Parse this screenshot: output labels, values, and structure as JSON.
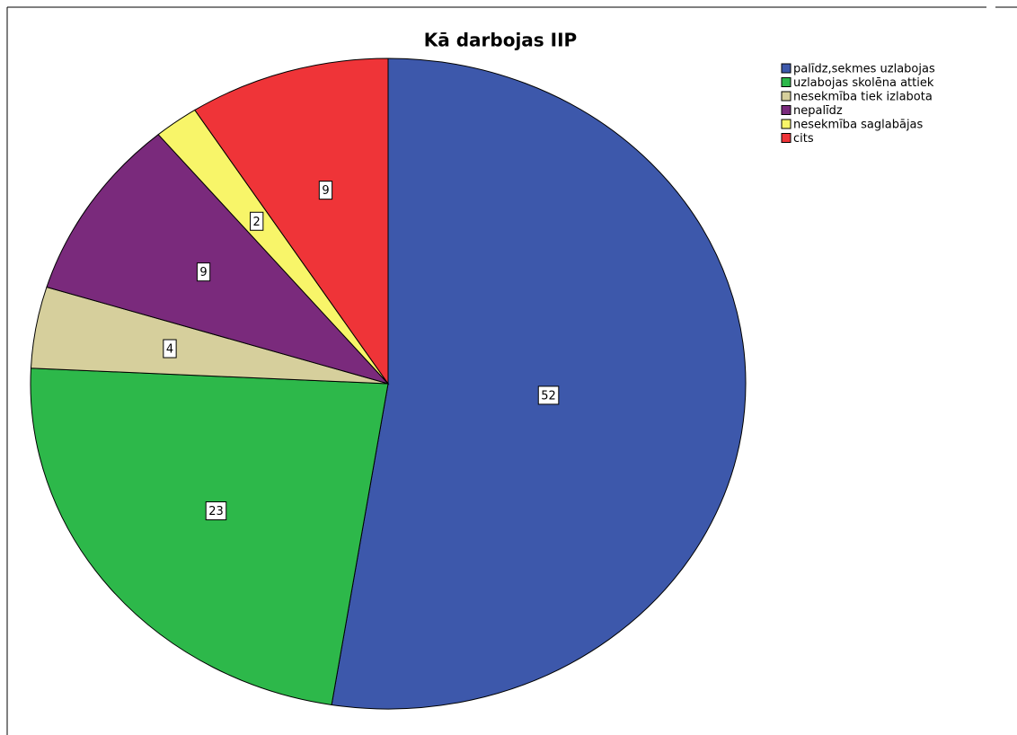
{
  "chart_data": {
    "type": "pie",
    "title": "Kā darbojas IIP",
    "categories": [
      "palīdz,sekmes uzlabojas",
      "uzlabojas skolēna attiek",
      "nesekmība tiek izlabota",
      "nepalīdz",
      "nesekmība saglabājas",
      "cits"
    ],
    "values": [
      52,
      23,
      4,
      9,
      2,
      9
    ],
    "colors": [
      "#3d58ab",
      "#2db84a",
      "#d6cf9c",
      "#7a2a7c",
      "#f8f569",
      "#ef3438"
    ]
  }
}
